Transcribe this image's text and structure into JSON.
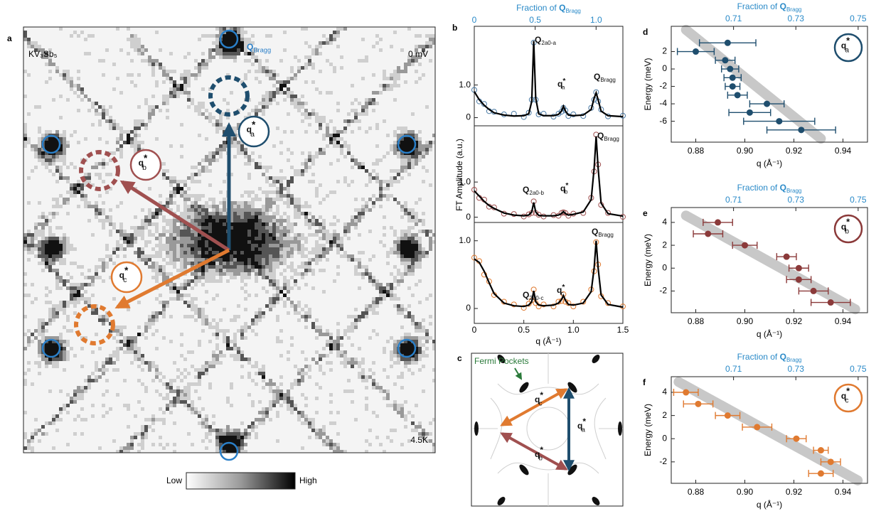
{
  "panel_a": {
    "label": "a",
    "material": "KV₃Sb₅",
    "bias": "0 mV",
    "temperature": "4.5K",
    "bragg_label": {
      "symbol": "Q",
      "sub": "Bragg"
    },
    "vectors": [
      {
        "symbol": "q",
        "sup": "*",
        "sub": "a"
      },
      {
        "symbol": "q",
        "sup": "*",
        "sub": "b"
      },
      {
        "symbol": "q",
        "sup": "*",
        "sub": "c"
      }
    ],
    "colorbar": {
      "low": "Low",
      "high": "High"
    }
  },
  "panel_c": {
    "label": "c",
    "annotation": "Fermi Pockets",
    "vectors": [
      {
        "symbol": "q",
        "sup": "*",
        "sub": "a"
      },
      {
        "symbol": "q",
        "sup": "*",
        "sub": "b"
      },
      {
        "symbol": "q",
        "sup": "*",
        "sub": "c"
      }
    ]
  },
  "chart_data": [
    {
      "type": "line",
      "label": "b",
      "xlabel": "q (Å⁻¹)",
      "ylabel": "FT Amplitude (a.u.)",
      "x2label": {
        "prefix": "Fraction of ",
        "symbol": "Q",
        "sub": "Bragg"
      },
      "xlim": [
        0,
        1.5
      ],
      "xticks": [
        0,
        0.5,
        {
          "value": 1,
          "label": "1.0"
        },
        1.5
      ],
      "x2lim": [
        0,
        1.22
      ],
      "x2ticks": [
        0,
        0.5,
        {
          "value": 1,
          "label": "1.0"
        }
      ],
      "x": [
        0,
        0.05,
        0.1,
        0.15,
        0.2,
        0.3,
        0.4,
        0.5,
        0.55,
        0.58,
        0.6,
        0.62,
        0.65,
        0.7,
        0.8,
        0.85,
        0.88,
        0.9,
        0.92,
        0.95,
        1.0,
        1.1,
        1.18,
        1.21,
        1.23,
        1.25,
        1.28,
        1.35,
        1.5
      ],
      "subplots": [
        {
          "color": "#4a7aa5",
          "ylim": [
            -0.25,
            2.8
          ],
          "yticks": [
            0,
            {
              "value": 1,
              "label": "1.0"
            }
          ],
          "fit": [
            0.8,
            0.55,
            0.38,
            0.25,
            0.15,
            0.08,
            0.05,
            0.06,
            0.12,
            0.5,
            2.35,
            0.6,
            0.12,
            0.06,
            0.06,
            0.1,
            0.2,
            0.35,
            0.2,
            0.08,
            0.06,
            0.08,
            0.25,
            0.6,
            0.76,
            0.55,
            0.2,
            0.06,
            0.03
          ],
          "data": [
            0.85,
            0.5,
            0.42,
            0.2,
            0.18,
            0.1,
            0.12,
            0.02,
            0.15,
            0.55,
            2.3,
            0.55,
            0.1,
            0.12,
            0.03,
            0.12,
            0.18,
            0.3,
            0.22,
            0.05,
            0.1,
            0.05,
            0.3,
            0.55,
            0.78,
            0.5,
            0.25,
            0.04,
            0.06
          ],
          "peak_labels": [
            {
              "symbol": "Q",
              "sub": "2a0-a"
            },
            {
              "symbol": "q",
              "sup": "*",
              "sub": "a"
            },
            {
              "symbol": "Q",
              "sub": "Bragg"
            }
          ]
        },
        {
          "color": "#a05050",
          "ylim": [
            -0.15,
            2.6
          ],
          "yticks": [
            0,
            {
              "value": 1,
              "label": "1.0"
            }
          ],
          "fit": [
            0.75,
            0.6,
            0.45,
            0.33,
            0.25,
            0.12,
            0.06,
            0.04,
            0.06,
            0.15,
            0.42,
            0.15,
            0.05,
            0.04,
            0.04,
            0.06,
            0.1,
            0.16,
            0.1,
            0.06,
            0.08,
            0.15,
            0.5,
            1.4,
            2.3,
            1.4,
            0.4,
            0.1,
            0.03
          ],
          "data": [
            0.78,
            0.55,
            0.5,
            0.3,
            0.28,
            0.1,
            0.09,
            0.02,
            0.08,
            0.12,
            0.45,
            0.12,
            0.07,
            0.02,
            0.06,
            0.04,
            0.12,
            0.14,
            0.12,
            0.04,
            0.1,
            0.12,
            0.55,
            1.3,
            2.35,
            1.5,
            0.35,
            0.12,
            0.01
          ],
          "peak_labels": [
            {
              "symbol": "Q",
              "sub": "2a0-b"
            },
            {
              "symbol": "q",
              "sup": "*",
              "sub": "b"
            },
            {
              "symbol": "Q",
              "sub": "Bragg"
            }
          ]
        },
        {
          "color": "#e07a30",
          "ylim": [
            -0.22,
            1.27
          ],
          "yticks": [
            0,
            {
              "value": 1,
              "label": "1.0"
            }
          ],
          "fit": [
            0.73,
            0.68,
            0.55,
            0.38,
            0.22,
            0.08,
            0.04,
            0.03,
            0.05,
            0.1,
            0.26,
            0.1,
            0.05,
            0.04,
            0.05,
            0.08,
            0.13,
            0.19,
            0.12,
            0.06,
            0.05,
            0.08,
            0.25,
            0.6,
            1.0,
            0.6,
            0.2,
            0.06,
            0.02
          ],
          "data": [
            0.75,
            0.7,
            0.5,
            0.4,
            0.2,
            0.1,
            0.06,
            0.01,
            0.07,
            0.12,
            0.28,
            0.08,
            0.03,
            0.06,
            0.03,
            0.1,
            0.11,
            0.21,
            0.1,
            0.08,
            0.03,
            0.1,
            0.28,
            0.55,
            0.98,
            0.65,
            0.18,
            0.08,
            0.03
          ],
          "peak_labels": [
            {
              "symbol": "Q",
              "sub": "2a0-c"
            },
            {
              "symbol": "q",
              "sup": "*",
              "sub": "c"
            },
            {
              "symbol": "Q",
              "sub": "Bragg"
            }
          ]
        }
      ]
    },
    {
      "type": "scatter",
      "label": "d",
      "xlabel": "q (Å⁻¹)",
      "ylabel": "Energy (meV)",
      "x2label": {
        "prefix": "Fraction of ",
        "symbol": "Q",
        "sub": "Bragg"
      },
      "legend": {
        "symbol": "q",
        "sup": "*",
        "sub": "a"
      },
      "color": "#1f4e6e",
      "trend_color": "#c8c8c8",
      "xlim": [
        0.87,
        0.95
      ],
      "xticks": [
        0.88,
        {
          "value": 0.9,
          "label": "0.90"
        },
        0.92,
        0.94
      ],
      "x2lim": [
        0.69,
        0.753
      ],
      "x2ticks": [
        0.71,
        0.73,
        0.75
      ],
      "ylim": [
        -8.4,
        4.9
      ],
      "yticks": [
        2,
        0,
        -2,
        -4,
        -6
      ],
      "x": [
        0.893,
        0.88,
        0.892,
        0.894,
        0.895,
        0.895,
        0.897,
        0.909,
        0.902,
        0.914,
        0.923
      ],
      "values": [
        3,
        2,
        1,
        0,
        -1,
        -2,
        -3,
        -4,
        -5,
        -6,
        -7
      ],
      "xerr": [
        0.0115,
        0.0075,
        0.004,
        0.0035,
        0.0035,
        0.003,
        0.004,
        0.007,
        0.0085,
        0.0145,
        0.014
      ],
      "trend": {
        "x": [
          0.876,
          0.931
        ],
        "y": [
          4.5,
          -8
        ]
      }
    },
    {
      "type": "scatter",
      "label": "e",
      "xlabel": "q (Å⁻¹)",
      "ylabel": "Energy (meV)",
      "x2label": {
        "prefix": "Fraction of ",
        "symbol": "Q",
        "sub": "Bragg"
      },
      "legend": {
        "symbol": "q",
        "sup": "*",
        "sub": "b"
      },
      "color": "#8b3a3a",
      "trend_color": "#c8c8c8",
      "xlim": [
        0.87,
        0.95
      ],
      "xticks": [
        0.88,
        {
          "value": 0.9,
          "label": "0.90"
        },
        0.92,
        0.94
      ],
      "x2lim": [
        0.69,
        0.753
      ],
      "x2ticks": [
        0.71,
        0.73,
        0.75
      ],
      "ylim": [
        -3.9,
        5.3
      ],
      "yticks": [
        4,
        2,
        0,
        -2
      ],
      "x": [
        0.889,
        0.885,
        0.9,
        0.917,
        0.922,
        0.922,
        0.928,
        0.935
      ],
      "values": [
        4,
        3,
        2,
        1,
        0,
        -1,
        -2,
        -3
      ],
      "xerr": [
        0.006,
        0.006,
        0.005,
        0.004,
        0.004,
        0.005,
        0.006,
        0.008
      ],
      "trend": {
        "x": [
          0.876,
          0.945
        ],
        "y": [
          4.6,
          -3.6
        ]
      }
    },
    {
      "type": "scatter",
      "label": "f",
      "xlabel": "q (Å⁻¹)",
      "ylabel": "Energy (meV)",
      "x2label": {
        "prefix": "Fraction of ",
        "symbol": "Q",
        "sub": "Bragg"
      },
      "legend": {
        "symbol": "q",
        "sup": "*",
        "sub": "c"
      },
      "color": "#e07a30",
      "trend_color": "#c8c8c8",
      "xlim": [
        0.87,
        0.95
      ],
      "xticks": [
        0.88,
        {
          "value": 0.9,
          "label": "0.90"
        },
        0.92,
        0.94
      ],
      "x2lim": [
        0.69,
        0.753
      ],
      "x2ticks": [
        0.71,
        0.73,
        0.75
      ],
      "ylim": [
        -3.85,
        5.35
      ],
      "yticks": [
        4,
        2,
        0,
        -2
      ],
      "x": [
        0.876,
        0.881,
        0.893,
        0.905,
        0.921,
        0.931,
        0.935,
        0.931
      ],
      "values": [
        4,
        3,
        2,
        1,
        0,
        -1,
        -2,
        -3
      ],
      "xerr": [
        0.005,
        0.006,
        0.005,
        0.006,
        0.004,
        0.003,
        0.004,
        0.005
      ],
      "trend": {
        "x": [
          0.873,
          0.946
        ],
        "y": [
          4.9,
          -3.6
        ]
      }
    }
  ]
}
